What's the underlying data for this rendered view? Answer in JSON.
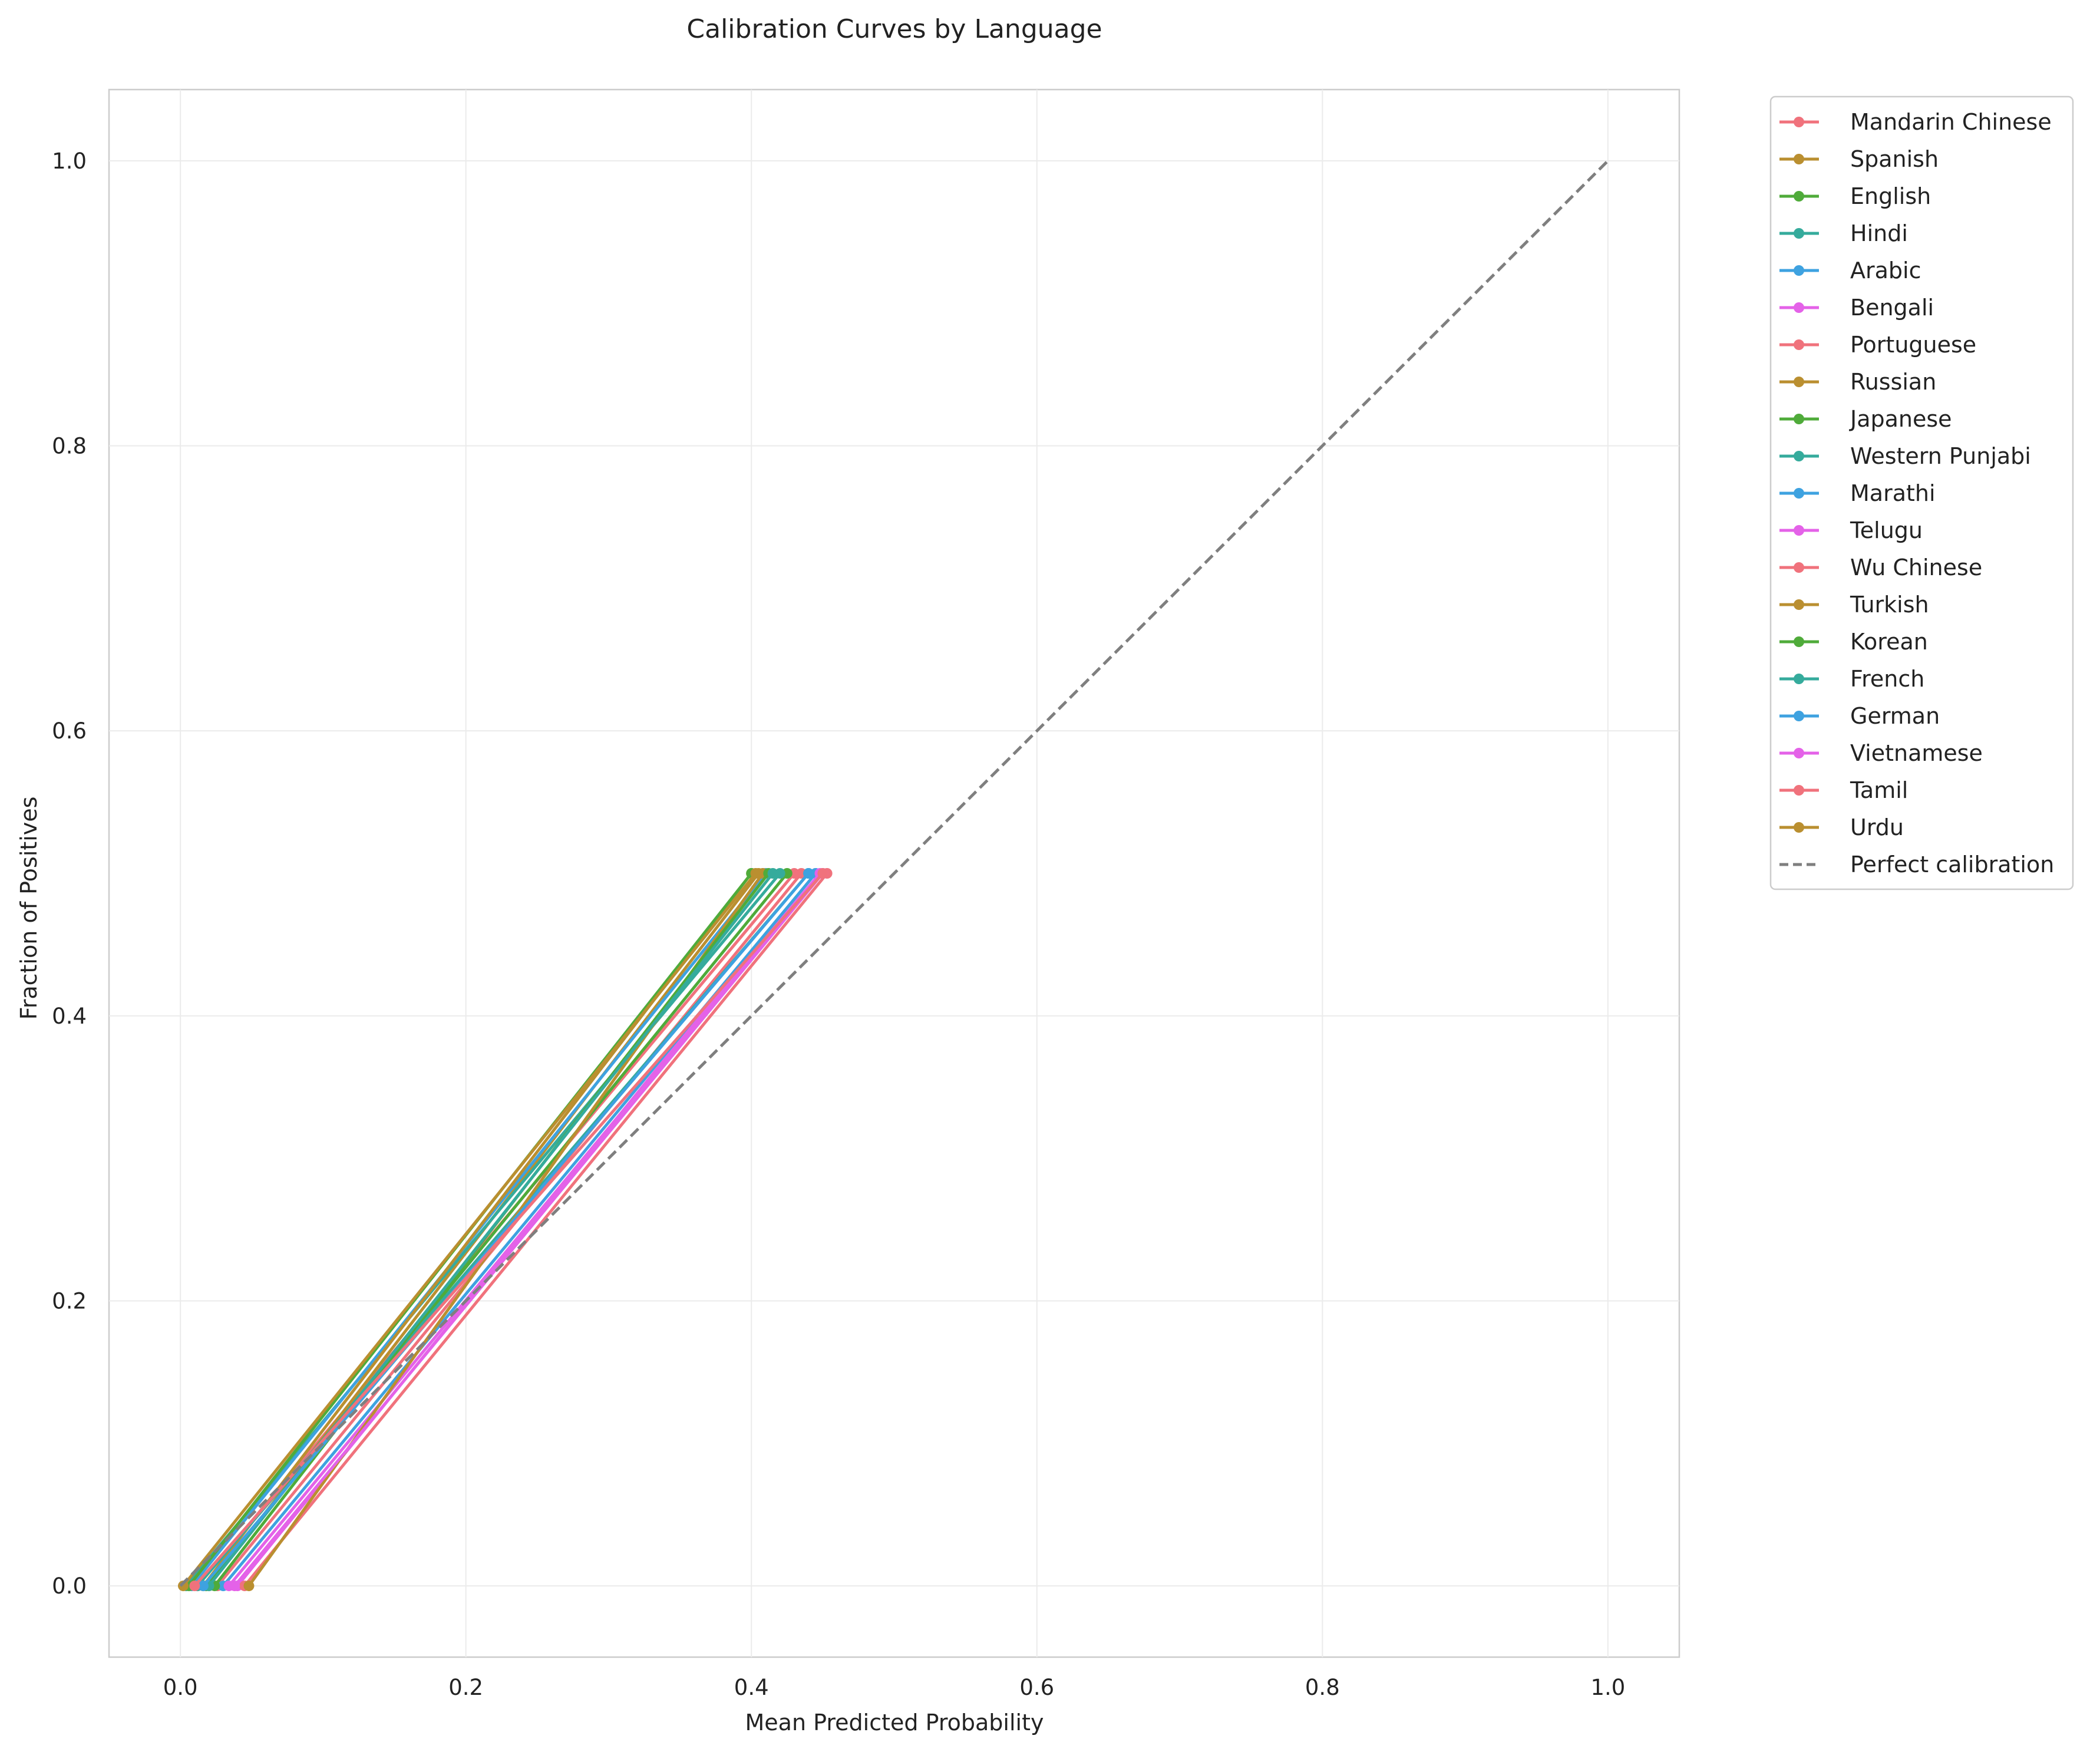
{
  "chart_data": {
    "type": "line",
    "title": "Calibration Curves by Language",
    "xlabel": "Mean Predicted Probability",
    "ylabel": "Fraction of Positives",
    "xlim": [
      -0.05,
      1.05
    ],
    "ylim": [
      -0.05,
      1.05
    ],
    "xticks": [
      0.0,
      0.2,
      0.4,
      0.6,
      0.8,
      1.0
    ],
    "yticks": [
      0.0,
      0.2,
      0.4,
      0.6,
      0.8,
      1.0
    ],
    "xtick_labels": [
      "0.0",
      "0.2",
      "0.4",
      "0.6",
      "0.8",
      "1.0"
    ],
    "ytick_labels": [
      "0.0",
      "0.2",
      "0.4",
      "0.6",
      "0.8",
      "1.0"
    ],
    "grid": true,
    "legend_position": "outside-right-top",
    "series": [
      {
        "name": "Mandarin Chinese",
        "color": "#f0727c",
        "points": [
          [
            0.012,
            0.0
          ],
          [
            0.43,
            0.5
          ]
        ]
      },
      {
        "name": "Spanish",
        "color": "#ba8f30",
        "points": [
          [
            0.02,
            0.0
          ],
          [
            0.405,
            0.5
          ]
        ]
      },
      {
        "name": "English",
        "color": "#4fab3a",
        "points": [
          [
            0.018,
            0.0
          ],
          [
            0.425,
            0.5
          ]
        ]
      },
      {
        "name": "Hindi",
        "color": "#35ab9c",
        "points": [
          [
            0.004,
            0.0
          ],
          [
            0.42,
            0.5
          ]
        ]
      },
      {
        "name": "Arabic",
        "color": "#3ea2e0",
        "points": [
          [
            0.008,
            0.0
          ],
          [
            0.41,
            0.5
          ]
        ]
      },
      {
        "name": "Bengali",
        "color": "#e462e8",
        "points": [
          [
            0.04,
            0.0
          ],
          [
            0.445,
            0.5
          ]
        ]
      },
      {
        "name": "Portuguese",
        "color": "#f0727c",
        "points": [
          [
            0.026,
            0.0
          ],
          [
            0.435,
            0.5
          ]
        ]
      },
      {
        "name": "Russian",
        "color": "#ba8f30",
        "points": [
          [
            0.016,
            0.0
          ],
          [
            0.4,
            0.5
          ]
        ]
      },
      {
        "name": "Japanese",
        "color": "#4fab3a",
        "points": [
          [
            0.006,
            0.0
          ],
          [
            0.4,
            0.5
          ]
        ]
      },
      {
        "name": "Western Punjabi",
        "color": "#35ab9c",
        "points": [
          [
            0.012,
            0.0
          ],
          [
            0.44,
            0.5
          ]
        ]
      },
      {
        "name": "Marathi",
        "color": "#3ea2e0",
        "points": [
          [
            0.03,
            0.0
          ],
          [
            0.445,
            0.5
          ]
        ]
      },
      {
        "name": "Telugu",
        "color": "#e462e8",
        "points": [
          [
            0.034,
            0.0
          ],
          [
            0.448,
            0.5
          ]
        ]
      },
      {
        "name": "Wu Chinese",
        "color": "#f0727c",
        "points": [
          [
            0.045,
            0.0
          ],
          [
            0.453,
            0.5
          ]
        ]
      },
      {
        "name": "Turkish",
        "color": "#ba8f30",
        "points": [
          [
            0.048,
            0.0
          ],
          [
            0.408,
            0.5
          ]
        ]
      },
      {
        "name": "Korean",
        "color": "#4fab3a",
        "points": [
          [
            0.024,
            0.0
          ],
          [
            0.412,
            0.5
          ]
        ]
      },
      {
        "name": "French",
        "color": "#35ab9c",
        "points": [
          [
            0.02,
            0.0
          ],
          [
            0.415,
            0.5
          ]
        ]
      },
      {
        "name": "German",
        "color": "#3ea2e0",
        "points": [
          [
            0.016,
            0.0
          ],
          [
            0.44,
            0.5
          ]
        ]
      },
      {
        "name": "Vietnamese",
        "color": "#e462e8",
        "points": [
          [
            0.038,
            0.0
          ],
          [
            0.45,
            0.5
          ]
        ]
      },
      {
        "name": "Tamil",
        "color": "#f0727c",
        "points": [
          [
            0.01,
            0.0
          ],
          [
            0.45,
            0.5
          ]
        ]
      },
      {
        "name": "Urdu",
        "color": "#ba8f30",
        "points": [
          [
            0.002,
            0.0
          ],
          [
            0.403,
            0.5
          ]
        ]
      }
    ],
    "reference_line": {
      "name": "Perfect calibration",
      "color": "#7f7f7f",
      "style": "dashed",
      "points": [
        [
          0.0,
          0.0
        ],
        [
          1.0,
          1.0
        ]
      ]
    }
  }
}
